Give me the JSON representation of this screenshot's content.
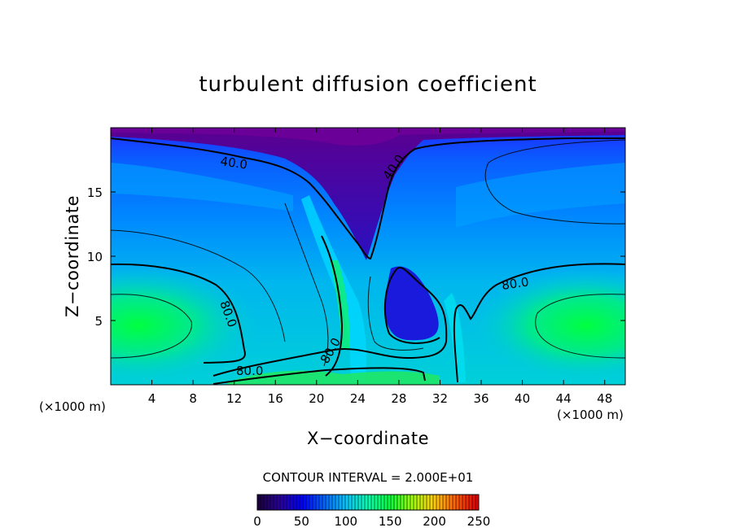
{
  "chart_data": {
    "type": "heatmap",
    "title": "turbulent diffusion coefficient",
    "xlabel": "X−coordinate",
    "ylabel": "Z−coordinate",
    "x_unit_left": "(×1000 m)",
    "x_unit_right": "(×1000 m)",
    "xlim": [
      0,
      50
    ],
    "ylim": [
      0,
      20
    ],
    "x_ticks": [
      "4",
      "8",
      "12",
      "16",
      "20",
      "24",
      "28",
      "32",
      "36",
      "40",
      "44",
      "48"
    ],
    "y_ticks": [
      "5",
      "10",
      "15"
    ],
    "contour_interval_text": "CONTOUR INTERVAL = 2.000E+01",
    "contour_labels": [
      "40.0",
      "40.0",
      "80.0",
      "80.0",
      "80.0",
      "80.0"
    ],
    "colorbar": {
      "range": [
        0,
        250
      ],
      "ticks": [
        "0",
        "50",
        "100",
        "150",
        "200",
        "250"
      ],
      "colors": [
        "#1a0040",
        "#2a00a0",
        "#0000ff",
        "#0066ff",
        "#00c8ff",
        "#00ffb0",
        "#00ff40",
        "#9cff00",
        "#ffd000",
        "#ff6000",
        "#e00000"
      ]
    },
    "grid": false
  }
}
